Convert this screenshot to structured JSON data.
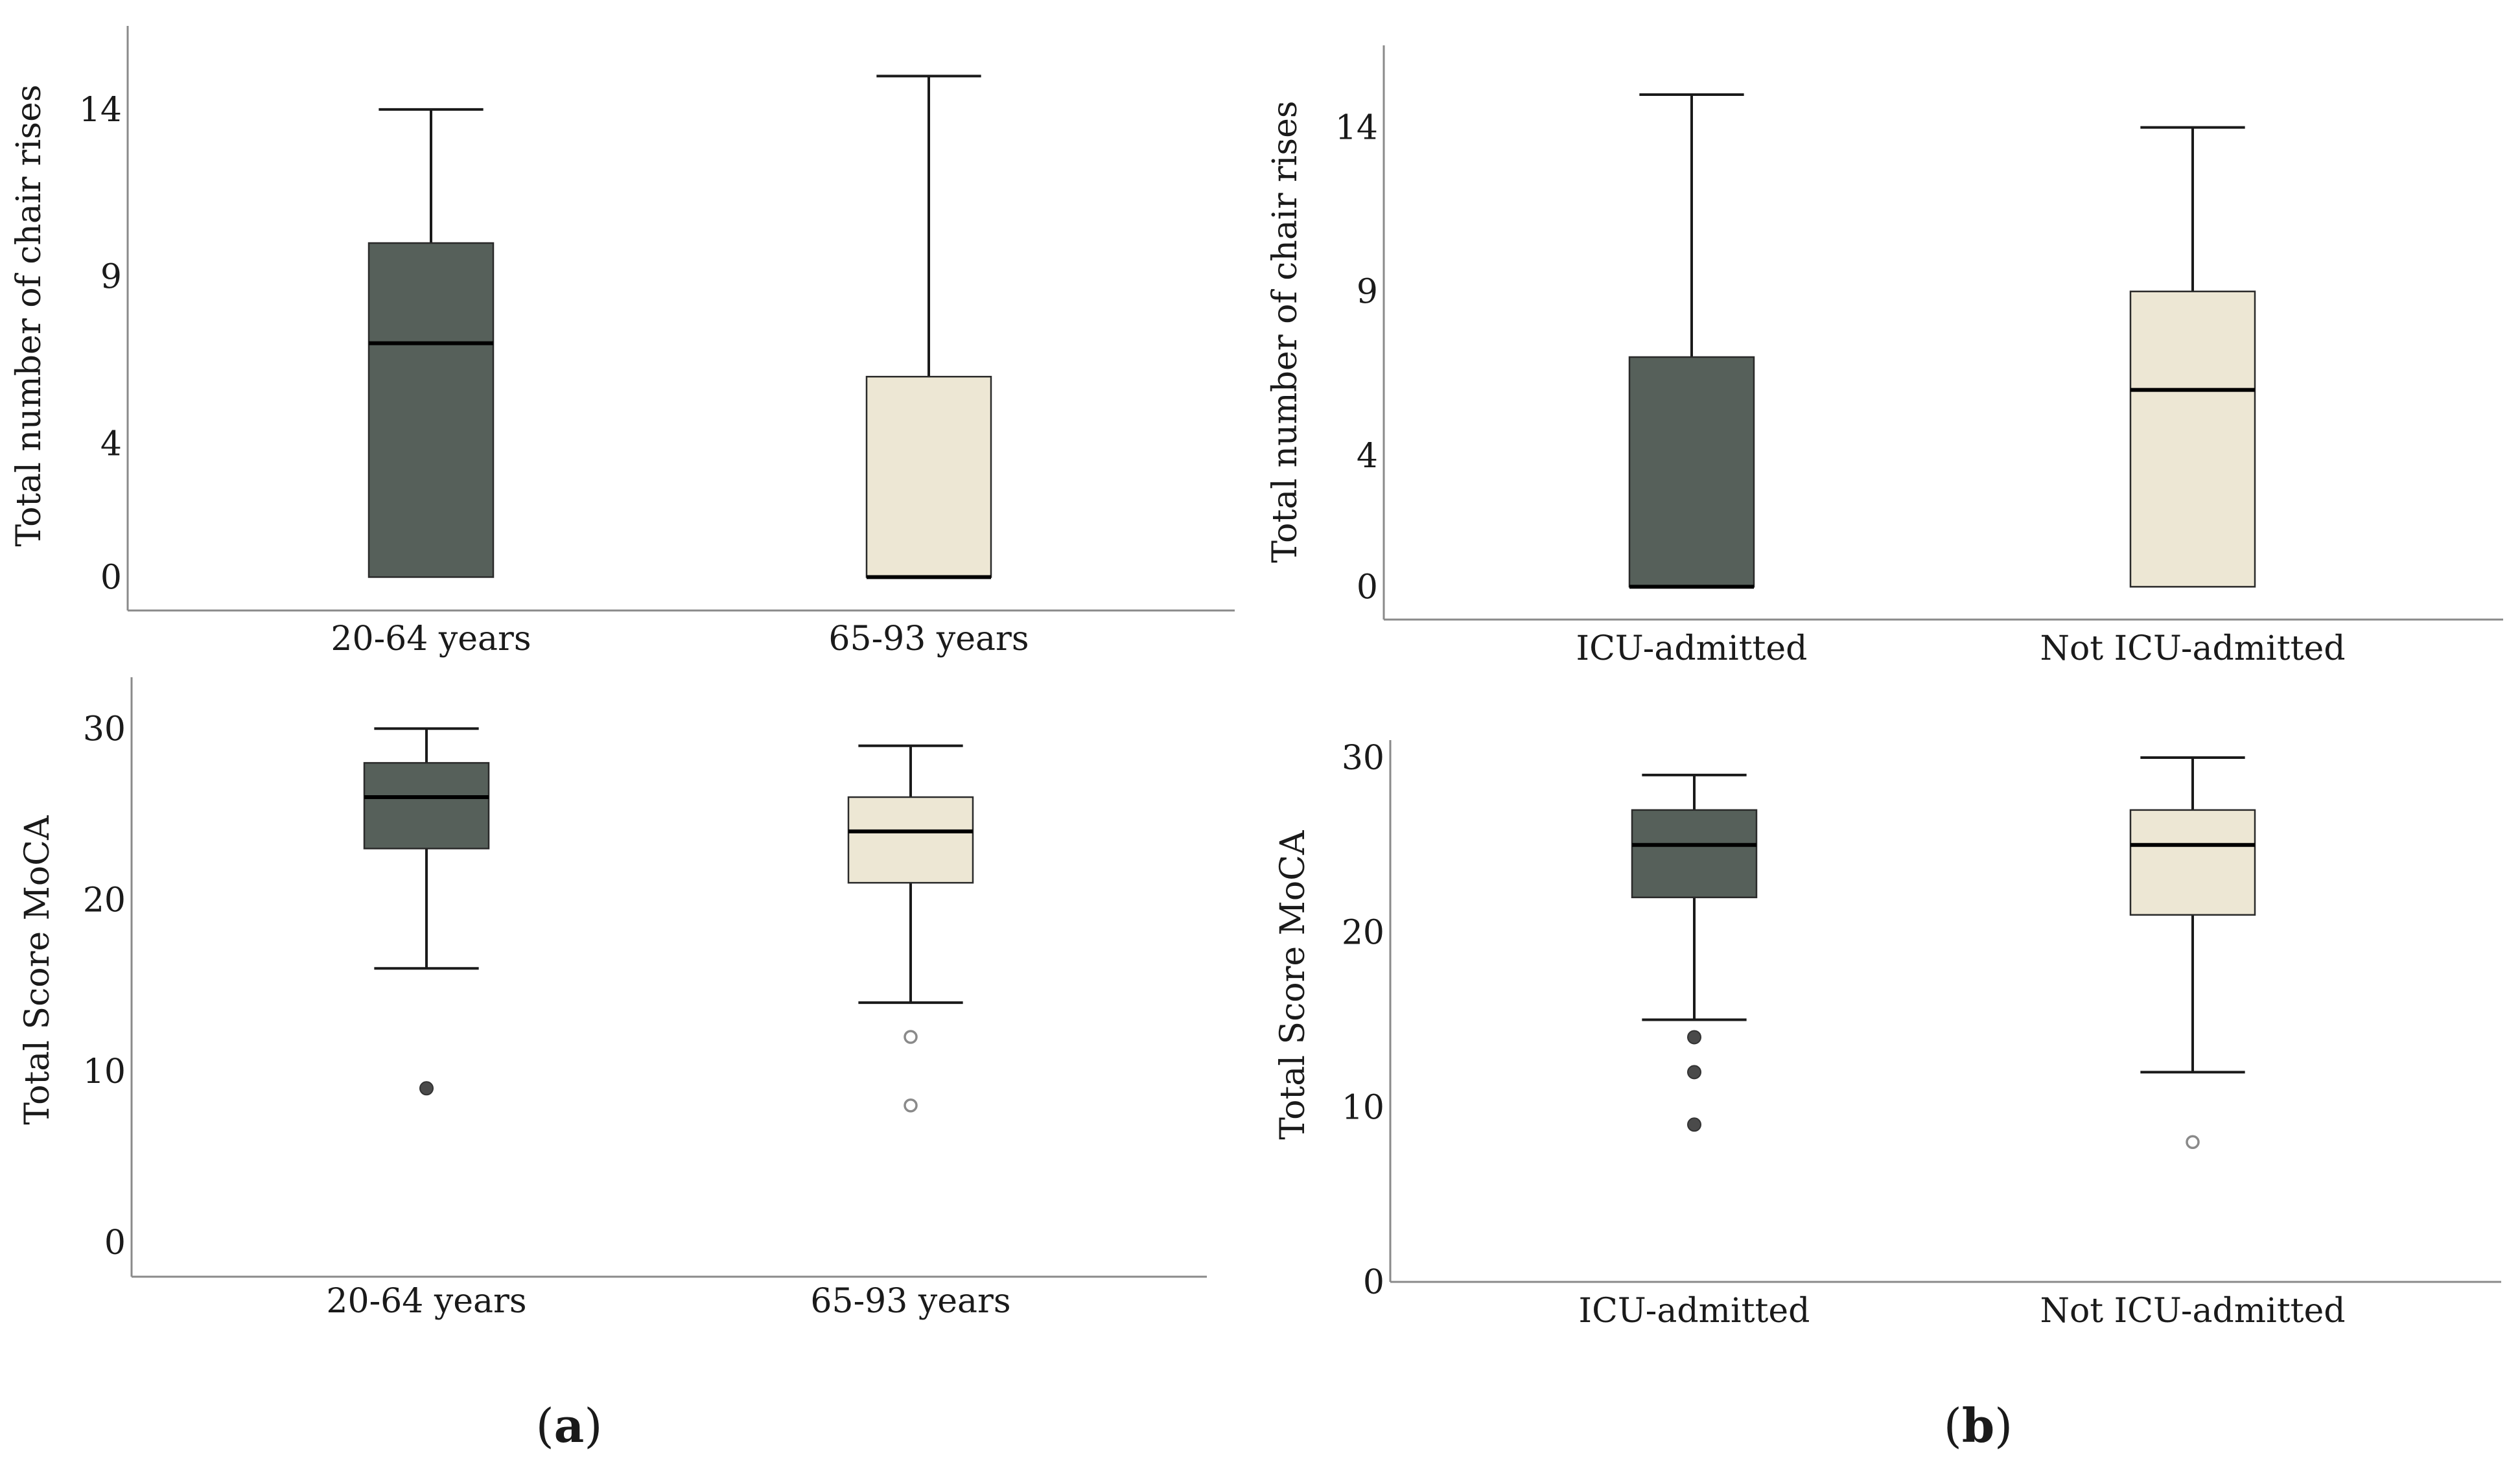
{
  "panel_labels": [
    {
      "open": "(",
      "letter": "a",
      "close": ")"
    },
    {
      "open": "(",
      "letter": "b",
      "close": ")"
    }
  ],
  "colors": {
    "group1_fill": "#56605a",
    "group2_fill": "#ede7d4",
    "axis": "#8a8a8a",
    "whisker": "#1a1a1a",
    "outlier_dark": "#4a4a4a",
    "outlier_light": "#8a8a8a"
  },
  "chart_data": [
    {
      "type": "box",
      "panel": "a",
      "ylabel": "Total number of chair rises",
      "yticks": [
        0,
        4,
        9,
        14
      ],
      "ylim": [
        -1,
        16.5
      ],
      "categories": [
        "20-64 years",
        "65-93 years"
      ],
      "boxes": [
        {
          "min": 0,
          "q1": 0,
          "median": 7,
          "q3": 10,
          "max": 14,
          "outliers": [],
          "hollow_outliers": false
        },
        {
          "min": 0,
          "q1": 0,
          "median": 0,
          "q3": 6,
          "max": 15,
          "outliers": [],
          "hollow_outliers": true
        }
      ]
    },
    {
      "type": "box",
      "panel": "b",
      "ylabel": "Total number of chair rises",
      "yticks": [
        0,
        4,
        9,
        14
      ],
      "ylim": [
        -1,
        16.5
      ],
      "categories": [
        "ICU-admitted",
        "Not ICU-admitted"
      ],
      "boxes": [
        {
          "min": 0,
          "q1": 0,
          "median": 0,
          "q3": 7,
          "max": 15,
          "outliers": [],
          "hollow_outliers": false
        },
        {
          "min": 0,
          "q1": 0,
          "median": 6,
          "q3": 9,
          "max": 14,
          "outliers": [],
          "hollow_outliers": true
        }
      ]
    },
    {
      "type": "box",
      "panel": "a",
      "ylabel": "Total Score MoCA",
      "yticks": [
        0,
        10,
        20,
        30
      ],
      "ylim": [
        -2,
        33
      ],
      "categories": [
        "20-64 years",
        "65-93 years"
      ],
      "boxes": [
        {
          "min": 16,
          "q1": 23,
          "median": 26,
          "q3": 28,
          "max": 30,
          "outliers": [
            9
          ],
          "hollow_outliers": false
        },
        {
          "min": 14,
          "q1": 21,
          "median": 24,
          "q3": 26,
          "max": 29,
          "outliers": [
            12,
            8
          ],
          "hollow_outliers": true
        }
      ]
    },
    {
      "type": "box",
      "panel": "b",
      "ylabel": "Total Score MoCA",
      "yticks": [
        0,
        10,
        20,
        30
      ],
      "ylim": [
        0,
        31
      ],
      "categories": [
        "ICU-admitted",
        "Not ICU-admitted"
      ],
      "boxes": [
        {
          "min": 15,
          "q1": 22,
          "median": 25,
          "q3": 27,
          "max": 29,
          "outliers": [
            14,
            12,
            9
          ],
          "hollow_outliers": false
        },
        {
          "min": 12,
          "q1": 21,
          "median": 25,
          "q3": 27,
          "max": 30,
          "outliers": [
            8
          ],
          "hollow_outliers": true
        }
      ]
    }
  ]
}
